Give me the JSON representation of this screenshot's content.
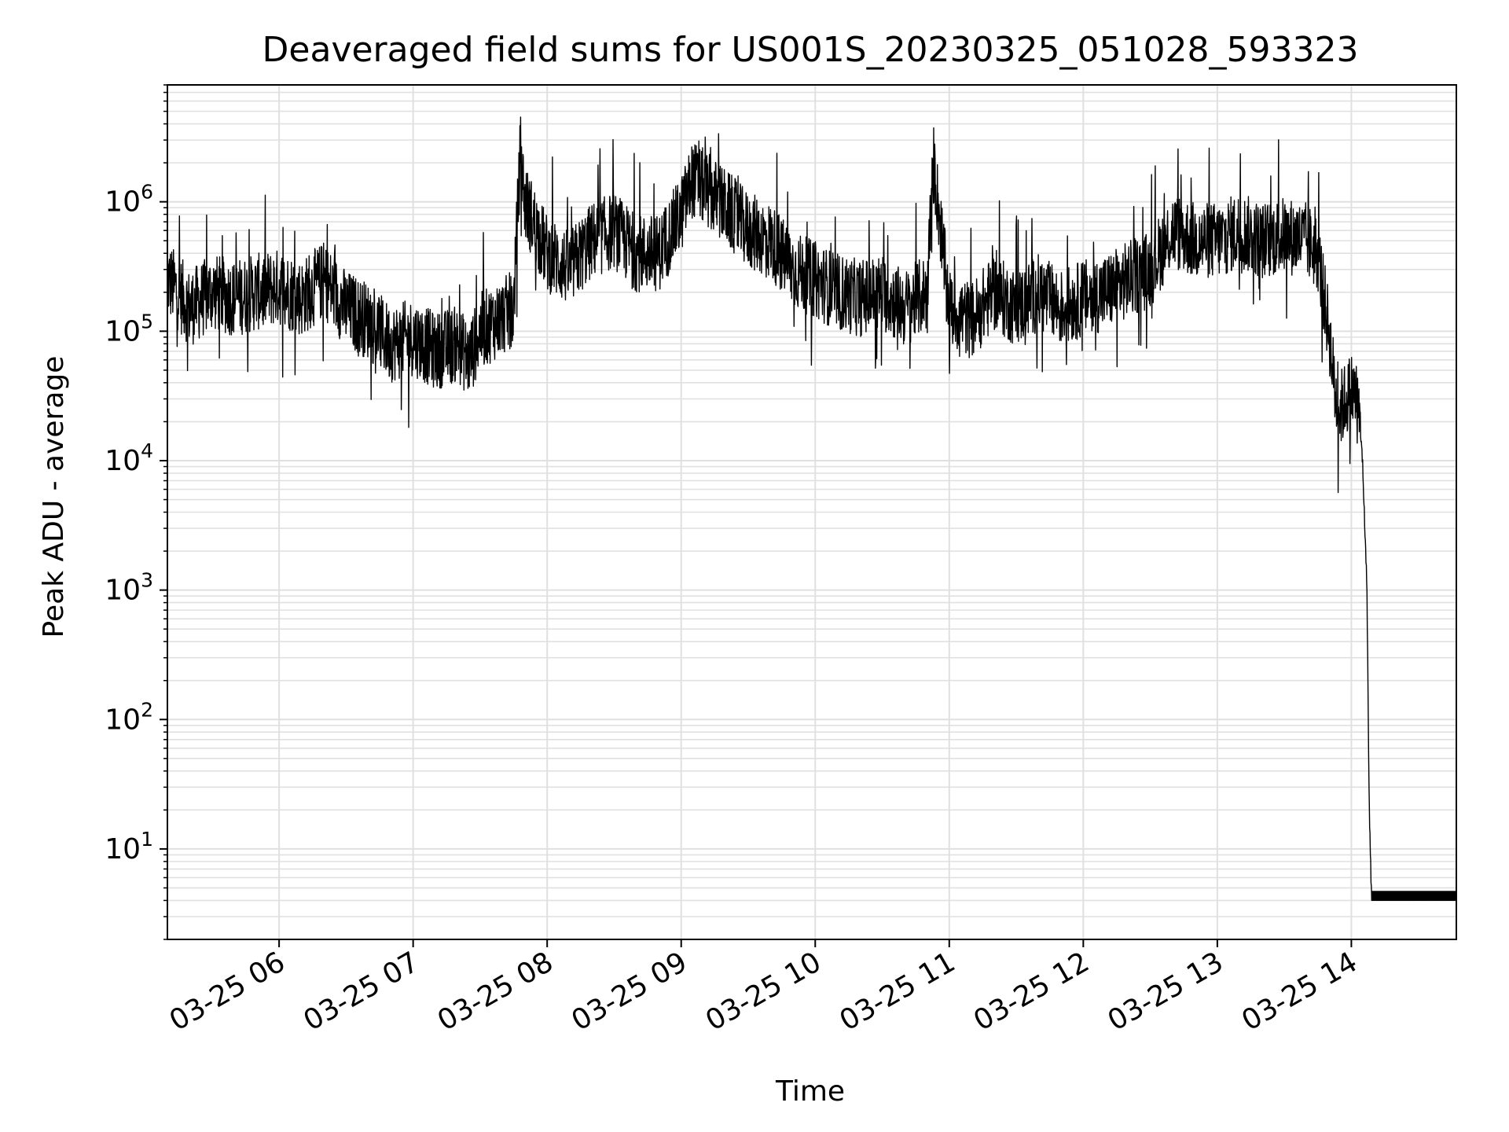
{
  "chart_data": {
    "type": "line",
    "title": "Deaveraged field sums for US001S_20230325_051028_593323",
    "xlabel": "Time",
    "ylabel": "Peak ADU - average",
    "yscale": "log",
    "ylim": [
      2,
      8000000
    ],
    "xlim": [
      "03-25 05:10",
      "03-25 14:47"
    ],
    "grid": true,
    "line_color": "#000000",
    "grid_color": "#e0e0e0",
    "y_ticks": [
      {
        "value": 10,
        "base": "10",
        "exp": "1"
      },
      {
        "value": 100,
        "base": "10",
        "exp": "2"
      },
      {
        "value": 1000,
        "base": "10",
        "exp": "3"
      },
      {
        "value": 10000,
        "base": "10",
        "exp": "4"
      },
      {
        "value": 100000,
        "base": "10",
        "exp": "5"
      },
      {
        "value": 1000000,
        "base": "10",
        "exp": "6"
      }
    ],
    "x_ticks": [
      "03-25 06",
      "03-25 07",
      "03-25 08",
      "03-25 09",
      "03-25 10",
      "03-25 11",
      "03-25 12",
      "03-25 13",
      "03-25 14"
    ],
    "series": [
      {
        "x": [
          "05:10",
          "05:15",
          "05:20",
          "05:30",
          "05:40",
          "05:50",
          "06:00",
          "06:10",
          "06:20",
          "06:30",
          "06:40",
          "06:50",
          "07:00",
          "07:10",
          "07:20",
          "07:25",
          "07:30",
          "07:40",
          "07:45",
          "07:48",
          "07:50",
          "08:00",
          "08:10",
          "08:20",
          "08:30",
          "08:40",
          "08:50",
          "09:00",
          "09:05",
          "09:10",
          "09:20",
          "09:30",
          "09:40",
          "09:50",
          "10:00",
          "10:10",
          "10:20",
          "10:30",
          "10:40",
          "10:50",
          "10:53",
          "11:00",
          "11:10",
          "11:20",
          "11:30",
          "11:40",
          "11:50",
          "12:00",
          "12:10",
          "12:20",
          "12:30",
          "12:40",
          "12:50",
          "13:00",
          "13:10",
          "13:20",
          "13:30",
          "13:40",
          "13:45",
          "13:50",
          "13:53",
          "13:55",
          "14:00",
          "14:03",
          "14:05",
          "14:07",
          "14:08",
          "14:09",
          "14:10",
          "14:20",
          "14:30",
          "14:47"
        ],
        "y": [
          250000,
          200000,
          150000,
          200000,
          180000,
          200000,
          220000,
          180000,
          250000,
          150000,
          120000,
          80000,
          90000,
          70000,
          80000,
          60000,
          100000,
          130000,
          150000,
          2500000,
          1000000,
          400000,
          300000,
          500000,
          600000,
          400000,
          400000,
          800000,
          1500000,
          1300000,
          900000,
          600000,
          500000,
          300000,
          250000,
          200000,
          180000,
          200000,
          150000,
          200000,
          2000000,
          150000,
          120000,
          200000,
          150000,
          200000,
          150000,
          180000,
          200000,
          250000,
          300000,
          600000,
          500000,
          500000,
          600000,
          500000,
          550000,
          500000,
          400000,
          100000,
          30000,
          25000,
          35000,
          30000,
          10000,
          1000,
          20,
          4,
          4,
          4,
          4,
          4
        ]
      }
    ]
  }
}
